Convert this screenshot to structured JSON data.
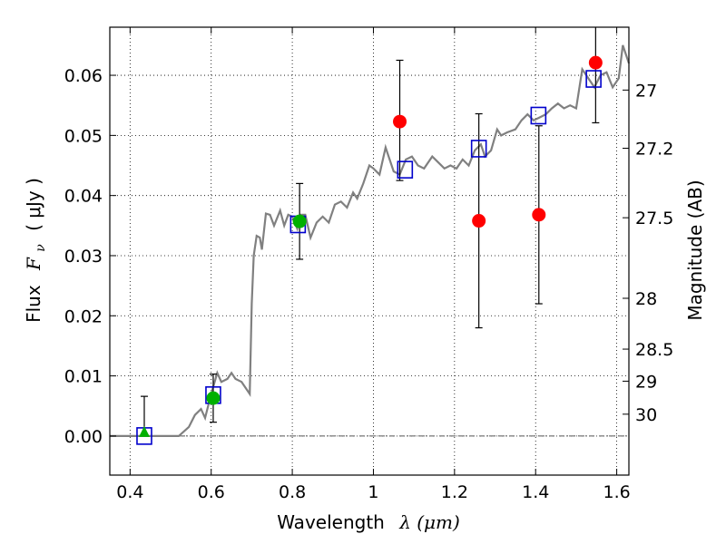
{
  "chart_data": {
    "type": "scatter",
    "xlabel": "Wavelength",
    "xlabel_math": "λ (μm)",
    "ylabel": "Flux",
    "ylabel_math": "F",
    "ylabel_math_sub": "ν",
    "ylabel_unit": "( μJy )",
    "y2label": "Magnitude (AB)",
    "xlim": [
      0.35,
      1.63
    ],
    "ylim": [
      -0.0065,
      0.068
    ],
    "grid": true,
    "x_ticks": [
      {
        "value": 0.4,
        "label": "0.4"
      },
      {
        "value": 0.6,
        "label": "0.6"
      },
      {
        "value": 0.8,
        "label": "0.8"
      },
      {
        "value": 1.0,
        "label": "1"
      },
      {
        "value": 1.2,
        "label": "1.2"
      },
      {
        "value": 1.4,
        "label": "1.4"
      },
      {
        "value": 1.6,
        "label": "1.6"
      }
    ],
    "y_ticks": [
      {
        "value": 0.0,
        "label": "0.00"
      },
      {
        "value": 0.01,
        "label": "0.01"
      },
      {
        "value": 0.02,
        "label": "0.02"
      },
      {
        "value": 0.03,
        "label": "0.03"
      },
      {
        "value": 0.04,
        "label": "0.04"
      },
      {
        "value": 0.05,
        "label": "0.05"
      },
      {
        "value": 0.06,
        "label": "0.06"
      }
    ],
    "mag_ticks": [
      {
        "mag": 27,
        "label": "27"
      },
      {
        "mag": 27.2,
        "label": "27.2"
      },
      {
        "mag": 27.5,
        "label": "27.5"
      },
      {
        "mag": 28,
        "label": "28"
      },
      {
        "mag": 28.5,
        "label": "28.5"
      },
      {
        "mag": 29,
        "label": "29"
      },
      {
        "mag": 30,
        "label": "30"
      }
    ],
    "colors": {
      "sed": "#808080",
      "model_box": "#0000cc",
      "green": "#00b000",
      "red": "#ff0000",
      "errorbar": "#000000",
      "zero_line": "#555555"
    },
    "sed_model": [
      [
        0.35,
        0.0
      ],
      [
        0.52,
        0.0
      ],
      [
        0.545,
        0.0015
      ],
      [
        0.56,
        0.0035
      ],
      [
        0.575,
        0.0045
      ],
      [
        0.585,
        0.003
      ],
      [
        0.6,
        0.007
      ],
      [
        0.615,
        0.0105
      ],
      [
        0.625,
        0.009
      ],
      [
        0.64,
        0.0095
      ],
      [
        0.65,
        0.0105
      ],
      [
        0.66,
        0.0095
      ],
      [
        0.675,
        0.009
      ],
      [
        0.685,
        0.008
      ],
      [
        0.695,
        0.007
      ],
      [
        0.7,
        0.022
      ],
      [
        0.705,
        0.03
      ],
      [
        0.712,
        0.0333
      ],
      [
        0.72,
        0.033
      ],
      [
        0.725,
        0.031
      ],
      [
        0.735,
        0.037
      ],
      [
        0.745,
        0.0368
      ],
      [
        0.755,
        0.035
      ],
      [
        0.77,
        0.0375
      ],
      [
        0.78,
        0.035
      ],
      [
        0.79,
        0.0368
      ],
      [
        0.8,
        0.0365
      ],
      [
        0.812,
        0.0345
      ],
      [
        0.82,
        0.0368
      ],
      [
        0.832,
        0.0368
      ],
      [
        0.845,
        0.033
      ],
      [
        0.86,
        0.0355
      ],
      [
        0.875,
        0.0365
      ],
      [
        0.89,
        0.0355
      ],
      [
        0.905,
        0.0385
      ],
      [
        0.92,
        0.039
      ],
      [
        0.935,
        0.038
      ],
      [
        0.95,
        0.0405
      ],
      [
        0.96,
        0.0395
      ],
      [
        0.975,
        0.042
      ],
      [
        0.99,
        0.045
      ],
      [
        1.0,
        0.0445
      ],
      [
        1.015,
        0.0435
      ],
      [
        1.03,
        0.048
      ],
      [
        1.05,
        0.044
      ],
      [
        1.065,
        0.0435
      ],
      [
        1.08,
        0.046
      ],
      [
        1.095,
        0.0465
      ],
      [
        1.11,
        0.045
      ],
      [
        1.125,
        0.0445
      ],
      [
        1.145,
        0.0465
      ],
      [
        1.16,
        0.0455
      ],
      [
        1.175,
        0.0445
      ],
      [
        1.19,
        0.045
      ],
      [
        1.205,
        0.0445
      ],
      [
        1.22,
        0.046
      ],
      [
        1.235,
        0.045
      ],
      [
        1.25,
        0.0475
      ],
      [
        1.265,
        0.0485
      ],
      [
        1.275,
        0.0465
      ],
      [
        1.29,
        0.0475
      ],
      [
        1.305,
        0.051
      ],
      [
        1.315,
        0.05
      ],
      [
        1.33,
        0.0505
      ],
      [
        1.35,
        0.051
      ],
      [
        1.365,
        0.0525
      ],
      [
        1.38,
        0.0535
      ],
      [
        1.395,
        0.0525
      ],
      [
        1.41,
        0.053
      ],
      [
        1.425,
        0.0535
      ],
      [
        1.44,
        0.0545
      ],
      [
        1.455,
        0.0553
      ],
      [
        1.47,
        0.0545
      ],
      [
        1.485,
        0.055
      ],
      [
        1.5,
        0.0545
      ],
      [
        1.515,
        0.061
      ],
      [
        1.53,
        0.0595
      ],
      [
        1.545,
        0.058
      ],
      [
        1.56,
        0.06
      ],
      [
        1.575,
        0.0605
      ],
      [
        1.59,
        0.058
      ],
      [
        1.605,
        0.0595
      ],
      [
        1.615,
        0.065
      ],
      [
        1.63,
        0.062
      ]
    ],
    "model_fluxes": [
      {
        "x": 0.435,
        "y": 0.0
      },
      {
        "x": 0.605,
        "y": 0.0068
      },
      {
        "x": 0.814,
        "y": 0.0352
      },
      {
        "x": 1.078,
        "y": 0.0443
      },
      {
        "x": 1.26,
        "y": 0.0478
      },
      {
        "x": 1.407,
        "y": 0.0533
      },
      {
        "x": 1.543,
        "y": 0.0594
      }
    ],
    "observed": [
      {
        "x": 0.435,
        "y": 0.0006,
        "yerr_low": 0.0006,
        "yerr_high": 0.006,
        "marker": "triangle",
        "color": "green"
      },
      {
        "x": 0.605,
        "y": 0.0063,
        "yerr_low": 0.004,
        "yerr_high": 0.004,
        "marker": "circle",
        "color": "green"
      },
      {
        "x": 0.818,
        "y": 0.0357,
        "yerr_low": 0.0063,
        "yerr_high": 0.0063,
        "marker": "circle",
        "color": "green"
      },
      {
        "x": 1.065,
        "y": 0.0523,
        "yerr_low": 0.0098,
        "yerr_high": 0.0102,
        "marker": "circle",
        "color": "red"
      },
      {
        "x": 1.26,
        "y": 0.0358,
        "yerr_low": 0.0178,
        "yerr_high": 0.0178,
        "marker": "circle",
        "color": "red"
      },
      {
        "x": 1.408,
        "y": 0.0368,
        "yerr_low": 0.0148,
        "yerr_high": 0.0148,
        "marker": "circle",
        "color": "red"
      },
      {
        "x": 1.548,
        "y": 0.0621,
        "yerr_low": 0.01,
        "yerr_high": 0.01,
        "marker": "circle",
        "color": "red"
      }
    ]
  }
}
